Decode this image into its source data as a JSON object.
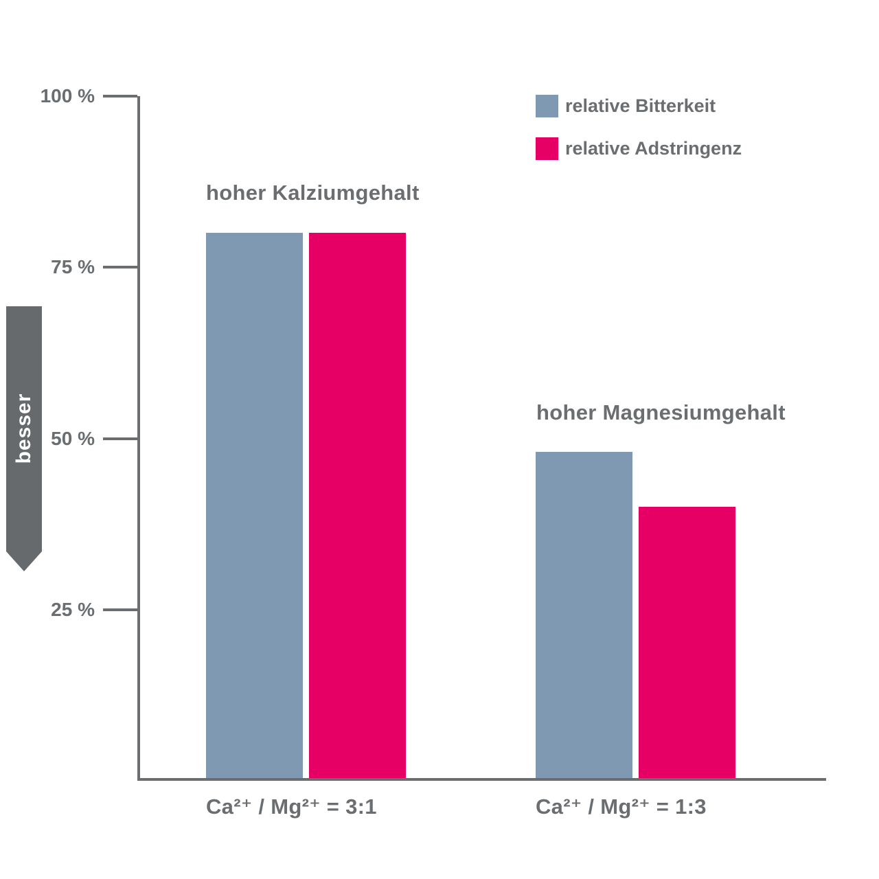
{
  "page": {
    "background": "#ffffff",
    "text_color": "#6a6e70",
    "axis_color": "#6a6e70"
  },
  "legend": {
    "position": "top-right",
    "items": [
      {
        "label": "relative Bitterkeit",
        "color": "#8099b2"
      },
      {
        "label": "relative Adstringenz",
        "color": "#e60066"
      }
    ]
  },
  "side_arrow": {
    "label": "besser",
    "color": "#666a6c",
    "direction": "down"
  },
  "chart_data": {
    "type": "bar",
    "title": "",
    "xlabel": "",
    "ylabel": "",
    "unit": "%",
    "ylim": [
      0,
      100
    ],
    "grid": false,
    "legend_position": "top-right",
    "categories": [
      "Ca²⁺ / Mg²⁺ = 3:1",
      "Ca²⁺ / Mg²⁺ = 1:3"
    ],
    "group_titles": [
      "hoher Kalziumgehalt",
      "hoher Magnesiumgehalt"
    ],
    "series": [
      {
        "name": "relative Bitterkeit",
        "color": "#8099b2",
        "values": [
          80,
          48
        ]
      },
      {
        "name": "relative Adstringenz",
        "color": "#e60066",
        "values": [
          80,
          40
        ]
      }
    ],
    "yticks": [
      {
        "value": 100,
        "label": "100 %"
      },
      {
        "value": 75,
        "label": "75 %"
      },
      {
        "value": 50,
        "label": "50 %"
      },
      {
        "value": 25,
        "label": "25 %"
      }
    ]
  }
}
